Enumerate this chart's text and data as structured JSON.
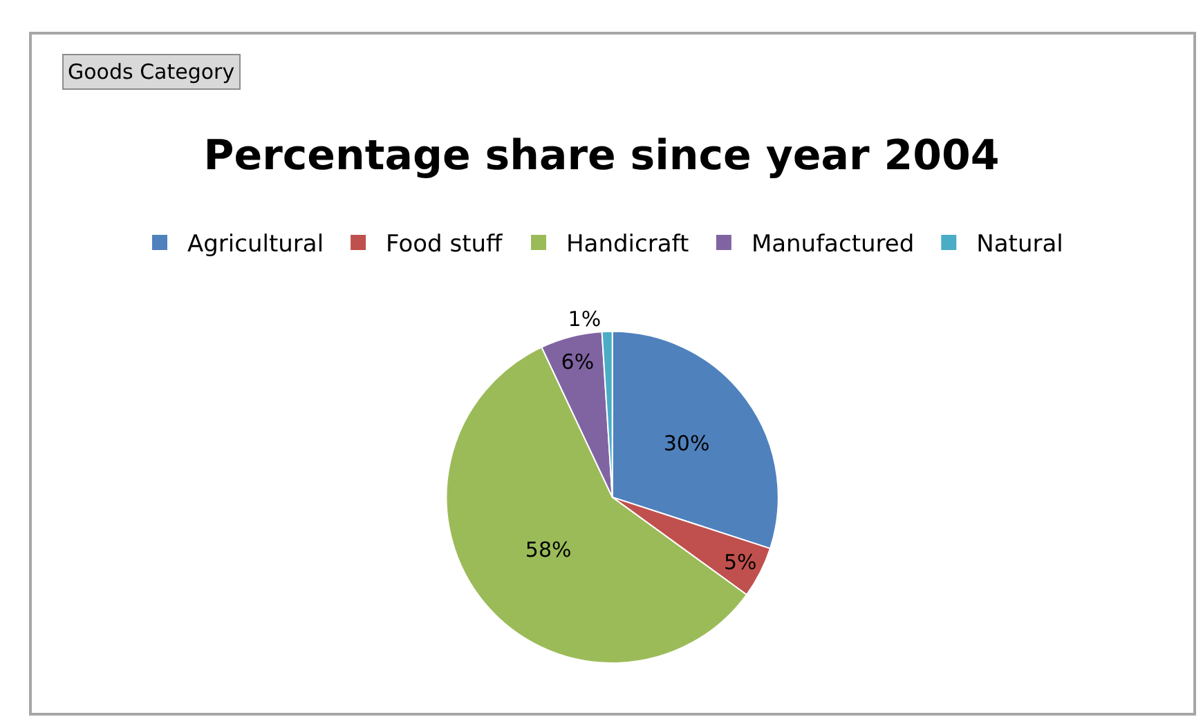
{
  "chart_data": {
    "type": "pie",
    "title": "Percentage share since year 2004",
    "categories": [
      "Agricultural",
      "Food stuff",
      "Handicraft",
      "Manufactured",
      "Natural"
    ],
    "values": [
      30,
      5,
      58,
      6,
      1
    ],
    "colors": [
      "#4f81bd",
      "#c0504d",
      "#9bbb59",
      "#8064a2",
      "#4bacc6"
    ],
    "value_labels": [
      "30%",
      "5%",
      "58%",
      "6%",
      "1%"
    ],
    "annotations": [
      "Goods Category"
    ],
    "legend": "top"
  }
}
